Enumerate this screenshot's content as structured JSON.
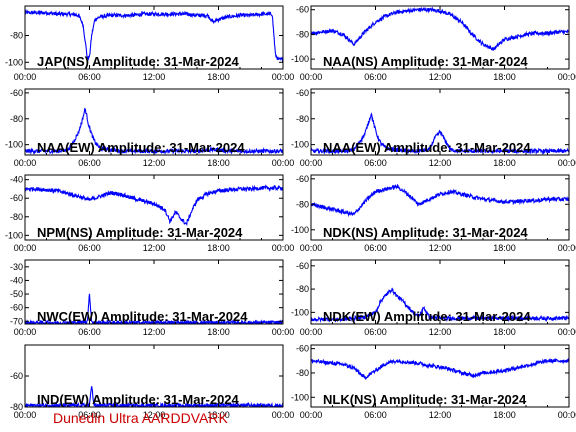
{
  "figure": {
    "credit": "Dunedin Ultra AARDDVARK",
    "credit_color": "#cc0000",
    "line_color": "#0000ff"
  },
  "chart_data": [
    {
      "type": "line",
      "title": "JAP(NS) Amplitude: 31-Mar-2024",
      "xticks": [
        "00:00",
        "06:00",
        "12:00",
        "18:00",
        "00:00"
      ],
      "ylim": [
        -105,
        -58
      ],
      "yticks": [
        -100,
        -80
      ],
      "x_hours": [
        0,
        1,
        2,
        3,
        4,
        5,
        5.4,
        5.6,
        5.8,
        6.0,
        6.2,
        6.5,
        7,
        8,
        9,
        10,
        11,
        12,
        13,
        14,
        15,
        16,
        17,
        17.5,
        18,
        19,
        20,
        21,
        22,
        23,
        23.3,
        23.6,
        24
      ],
      "values": [
        -63,
        -63,
        -63,
        -64,
        -64,
        -65,
        -72,
        -84,
        -97,
        -96,
        -80,
        -68,
        -66,
        -65,
        -65,
        -65,
        -64,
        -64,
        -64,
        -64,
        -64,
        -65,
        -65,
        -70,
        -68,
        -66,
        -65,
        -65,
        -64,
        -64,
        -95,
        -98,
        -98
      ]
    },
    {
      "type": "line",
      "title": "NAA(NS) Amplitude: 31-Mar-2024",
      "xticks": [
        "00:00",
        "06:00",
        "12:00",
        "18:00",
        "00:00"
      ],
      "ylim": [
        -108,
        -57
      ],
      "yticks": [
        -100,
        -80,
        -60
      ],
      "x_hours": [
        0,
        1,
        2,
        3,
        4,
        5,
        6,
        7,
        8,
        9,
        10,
        11,
        12,
        13,
        14,
        15,
        16,
        17,
        18,
        19,
        20,
        21,
        22,
        23,
        24
      ],
      "values": [
        -79,
        -78,
        -77,
        -80,
        -88,
        -78,
        -70,
        -65,
        -62,
        -61,
        -60,
        -60,
        -61,
        -64,
        -70,
        -80,
        -88,
        -92,
        -84,
        -82,
        -80,
        -79,
        -79,
        -78,
        -78
      ]
    },
    {
      "type": "line",
      "title": "NAA(EW) Amplitude: 31-Mar-2024",
      "xticks": [
        "00:00",
        "06:00",
        "12:00",
        "18:00",
        "00:00"
      ],
      "ylim": [
        -108,
        -57
      ],
      "yticks": [
        -100,
        -80,
        -60
      ],
      "x_hours": [
        0,
        1,
        2,
        3,
        4,
        4.5,
        5,
        5.3,
        5.6,
        5.9,
        6.2,
        6.5,
        7,
        8,
        9,
        10,
        11,
        12,
        13,
        14,
        15,
        16,
        17,
        18,
        19,
        20,
        21,
        22,
        23,
        24
      ],
      "values": [
        -105,
        -105,
        -105,
        -105,
        -104,
        -98,
        -90,
        -82,
        -72,
        -84,
        -92,
        -98,
        -103,
        -104,
        -105,
        -105,
        -105,
        -105,
        -105,
        -105,
        -105,
        -105,
        -104,
        -104,
        -105,
        -105,
        -105,
        -105,
        -105,
        -105
      ]
    },
    {
      "type": "line",
      "title": "NAA(EW) Amplitude: 31-Mar-2024",
      "xticks": [
        "00:00",
        "06:00",
        "12:00",
        "18:00",
        "00:00"
      ],
      "ylim": [
        -108,
        -57
      ],
      "yticks": [
        -100,
        -80,
        -60
      ],
      "x_hours": [
        0,
        1,
        2,
        3,
        4,
        4.5,
        5,
        5.3,
        5.6,
        5.9,
        6.2,
        6.5,
        7,
        8,
        9,
        10,
        11,
        11.5,
        12,
        12.5,
        13,
        14,
        15,
        16,
        17,
        18,
        19,
        20,
        21,
        22,
        23,
        24
      ],
      "values": [
        -105,
        -105,
        -105,
        -105,
        -104,
        -98,
        -92,
        -84,
        -76,
        -86,
        -94,
        -99,
        -103,
        -104,
        -105,
        -105,
        -104,
        -95,
        -90,
        -97,
        -104,
        -105,
        -105,
        -105,
        -105,
        -105,
        -105,
        -105,
        -105,
        -105,
        -105,
        -105
      ]
    },
    {
      "type": "line",
      "title": "NPM(NS) Amplitude: 31-Mar-2024",
      "xticks": [
        "00:00",
        "06:00",
        "12:00",
        "18:00",
        "00:00"
      ],
      "ylim": [
        -105,
        -35
      ],
      "yticks": [
        -100,
        -80,
        -60,
        -40
      ],
      "x_hours": [
        0,
        1,
        2,
        3,
        4,
        5,
        6,
        7,
        8,
        9,
        10,
        11,
        12,
        13,
        13.5,
        14,
        14.5,
        15,
        15.5,
        16,
        17,
        18,
        19,
        20,
        21,
        22,
        23,
        24
      ],
      "values": [
        -50,
        -50,
        -51,
        -52,
        -55,
        -58,
        -62,
        -58,
        -54,
        -56,
        -60,
        -63,
        -66,
        -72,
        -85,
        -75,
        -82,
        -88,
        -74,
        -62,
        -55,
        -52,
        -51,
        -50,
        -50,
        -49,
        -49,
        -49
      ]
    },
    {
      "type": "line",
      "title": "NDK(NS) Amplitude: 31-Mar-2024",
      "xticks": [
        "00:00",
        "06:00",
        "12:00",
        "18:00",
        "00:00"
      ],
      "ylim": [
        -108,
        -57
      ],
      "yticks": [
        -100,
        -80,
        -60
      ],
      "x_hours": [
        0,
        1,
        2,
        3,
        4,
        5,
        6,
        7,
        8,
        9,
        10,
        11,
        12,
        13,
        14,
        15,
        16,
        17,
        18,
        19,
        20,
        21,
        22,
        23,
        24
      ],
      "values": [
        -80,
        -82,
        -84,
        -86,
        -88,
        -78,
        -70,
        -68,
        -66,
        -72,
        -80,
        -76,
        -72,
        -70,
        -72,
        -74,
        -76,
        -77,
        -78,
        -78,
        -77,
        -77,
        -76,
        -76,
        -76
      ]
    },
    {
      "type": "line",
      "title": "NWC(EW) Amplitude: 31-Mar-2024",
      "xticks": [
        "00:00",
        "06:00",
        "12:00",
        "18:00",
        "00:00"
      ],
      "ylim": [
        -72,
        -25
      ],
      "yticks": [
        -70,
        -60,
        -50,
        -40,
        -30
      ],
      "x_hours": [
        0,
        2,
        4,
        5,
        5.8,
        6.0,
        6.2,
        6.4,
        7,
        9,
        11,
        13,
        15,
        17,
        19,
        21,
        23,
        24
      ],
      "values": [
        -71,
        -71,
        -71,
        -71,
        -70,
        -50,
        -70,
        -71,
        -71,
        -71,
        -71,
        -71,
        -71,
        -71,
        -71,
        -71,
        -71,
        -71
      ]
    },
    {
      "type": "line",
      "title": "NDK(EW) Amplitude: 31-Mar-2024",
      "xticks": [
        "00:00",
        "06:00",
        "12:00",
        "18:00",
        "00:00"
      ],
      "ylim": [
        -110,
        -55
      ],
      "yticks": [
        -100,
        -80,
        -60
      ],
      "x_hours": [
        0,
        1,
        2,
        3,
        4,
        5,
        6,
        6.5,
        7,
        7.5,
        8,
        8.5,
        9,
        9.5,
        10,
        10.5,
        11,
        12,
        13,
        14,
        15,
        16,
        17,
        18,
        19,
        20,
        21,
        22,
        23,
        24
      ],
      "values": [
        -106,
        -106,
        -106,
        -106,
        -105,
        -104,
        -100,
        -90,
        -85,
        -80,
        -86,
        -90,
        -95,
        -100,
        -104,
        -96,
        -104,
        -105,
        -105,
        -105,
        -105,
        -105,
        -105,
        -105,
        -105,
        -105,
        -105,
        -105,
        -105,
        -105
      ]
    },
    {
      "type": "line",
      "title": "IND(EW) Amplitude: 31-Mar-2024",
      "xticks": [
        "00:00",
        "06:00",
        "12:00",
        "18:00",
        "00:00"
      ],
      "ylim": [
        -80,
        -40
      ],
      "yticks": [
        -80,
        -60
      ],
      "x_hours": [
        0,
        2,
        4,
        5,
        6.0,
        6.2,
        6.4,
        6.6,
        7,
        9,
        11,
        13,
        15,
        17,
        19,
        21,
        23,
        24
      ],
      "values": [
        -79,
        -79,
        -79,
        -79,
        -79,
        -65,
        -79,
        -79,
        -79,
        -79,
        -79,
        -79,
        -79,
        -79,
        -79,
        -79,
        -79,
        -79
      ]
    },
    {
      "type": "line",
      "title": "NLK(NS) Amplitude: 31-Mar-2024",
      "xticks": [
        "00:00",
        "06:00",
        "12:00",
        "18:00",
        "00:00"
      ],
      "ylim": [
        -108,
        -57
      ],
      "yticks": [
        -100,
        -80,
        -60
      ],
      "x_hours": [
        0,
        1,
        2,
        3,
        4,
        5,
        6,
        7,
        8,
        9,
        10,
        11,
        12,
        13,
        14,
        15,
        16,
        17,
        18,
        19,
        20,
        21,
        22,
        23,
        24
      ],
      "values": [
        -70,
        -71,
        -72,
        -73,
        -76,
        -84,
        -78,
        -72,
        -70,
        -71,
        -72,
        -74,
        -75,
        -77,
        -80,
        -82,
        -80,
        -79,
        -78,
        -76,
        -74,
        -72,
        -70,
        -70,
        -70
      ]
    }
  ]
}
